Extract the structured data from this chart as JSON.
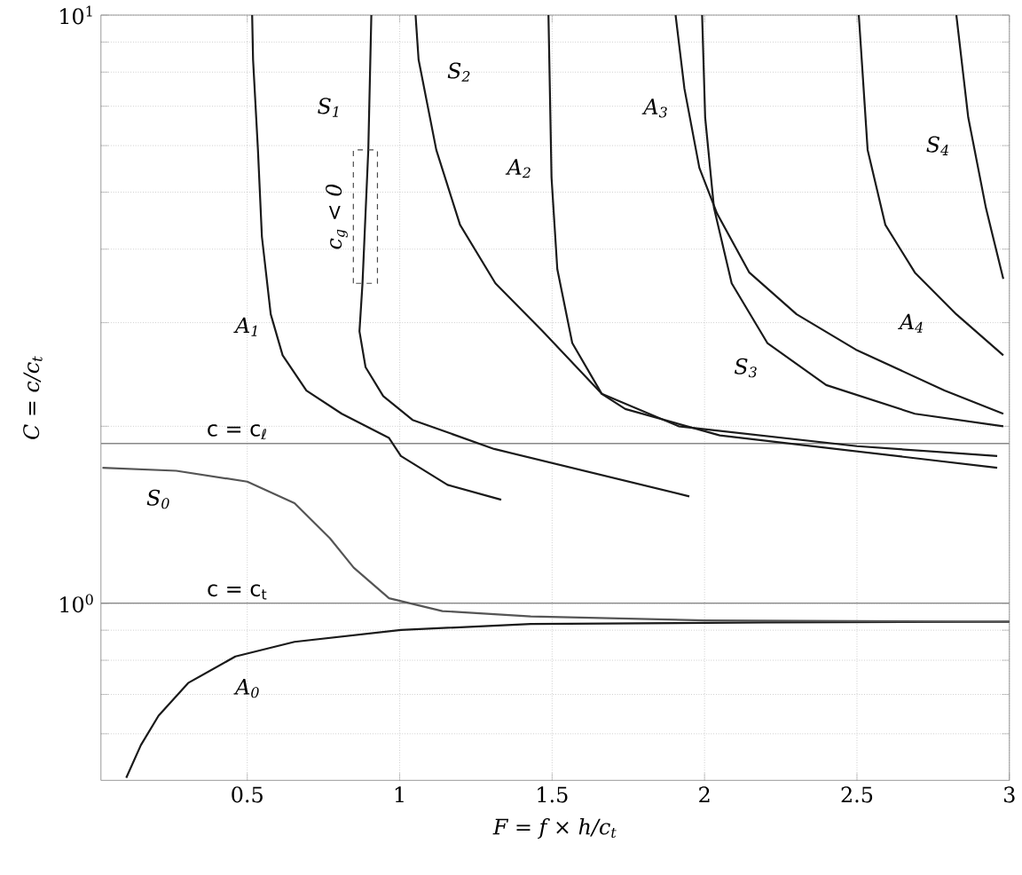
{
  "chart_data": {
    "type": "line",
    "xlabel": "F = f × h/c$_{t}$",
    "ylabel": "C = c/c$_{t}$",
    "xlim": [
      0.02,
      3
    ],
    "ylim": [
      0.5,
      10
    ],
    "log": true,
    "grid": true,
    "xticks": [
      0.5,
      1,
      1.5,
      2,
      2.5,
      3
    ],
    "yticks": [
      {
        "value": 0.6,
        "label": null
      },
      {
        "value": 0.7,
        "label": null
      },
      {
        "value": 0.8,
        "label": null
      },
      {
        "value": 0.9,
        "label": null
      },
      {
        "value": 1,
        "label": "10$^{0}$"
      },
      {
        "value": 2,
        "label": null
      },
      {
        "value": 3,
        "label": null
      },
      {
        "value": 4,
        "label": null
      },
      {
        "value": 5,
        "label": null
      },
      {
        "value": 6,
        "label": null
      },
      {
        "value": 7,
        "label": null
      },
      {
        "value": 8,
        "label": null
      },
      {
        "value": 9,
        "label": null
      },
      {
        "value": 10,
        "label": "10$^{1}$"
      }
    ],
    "series": [
      {
        "name": "A$_{0}$",
        "color": "#1a1a1a",
        "x": [
          0.103,
          0.151,
          0.209,
          0.306,
          0.461,
          0.655,
          1.004,
          1.43,
          2.2,
          3.0
        ],
        "values": [
          0.505,
          0.574,
          0.644,
          0.732,
          0.812,
          0.86,
          0.901,
          0.922,
          0.928,
          0.93
        ]
      },
      {
        "name": "S$_{0}$",
        "color": "#555555",
        "x": [
          0.025,
          0.267,
          0.5,
          0.655,
          0.771,
          0.849,
          0.965,
          1.14,
          1.43,
          2.0,
          3.0
        ],
        "values": [
          1.7,
          1.68,
          1.61,
          1.48,
          1.29,
          1.15,
          1.02,
          0.97,
          0.95,
          0.935,
          0.93
        ]
      },
      {
        "name": "A$_{1}$",
        "color": "#1a1a1a",
        "x": [
          0.516,
          0.519,
          0.535,
          0.548,
          0.577,
          0.616,
          0.694,
          0.81,
          0.965,
          1.004,
          1.157,
          1.333
        ],
        "values": [
          10,
          8.4,
          5.9,
          4.2,
          3.1,
          2.64,
          2.3,
          2.1,
          1.91,
          1.78,
          1.59,
          1.5
        ]
      },
      {
        "name": "S$_{1}$",
        "color": "#1a1a1a",
        "x": [
          0.907,
          0.897,
          0.878,
          0.868,
          0.888,
          0.946,
          1.042,
          1.31,
          1.95
        ],
        "values": [
          10,
          5.9,
          3.5,
          2.9,
          2.52,
          2.25,
          2.05,
          1.83,
          1.52
        ]
      },
      {
        "name": "S$_{2}$",
        "color": "#1a1a1a",
        "x": [
          1.052,
          1.062,
          1.12,
          1.198,
          1.314,
          1.469,
          1.663,
          1.74,
          2.05,
          2.96
        ],
        "values": [
          10,
          8.4,
          5.9,
          4.4,
          3.5,
          2.9,
          2.27,
          2.14,
          1.93,
          1.7
        ]
      },
      {
        "name": "A$_{2}$",
        "color": "#1a1a1a",
        "x": [
          1.488,
          1.498,
          1.517,
          1.566,
          1.663,
          1.915,
          2.5,
          2.96
        ],
        "values": [
          10,
          5.3,
          3.7,
          2.77,
          2.27,
          2.0,
          1.85,
          1.78
        ]
      },
      {
        "name": "A$_{3}$",
        "color": "#1a1a1a",
        "x": [
          1.905,
          1.934,
          1.983,
          2.041,
          2.147,
          2.302,
          2.496,
          2.787,
          2.98
        ],
        "values": [
          10,
          7.5,
          5.5,
          4.6,
          3.65,
          3.1,
          2.7,
          2.3,
          2.1
        ]
      },
      {
        "name": "S$_{3}$",
        "color": "#1a1a1a",
        "x": [
          1.992,
          2.002,
          2.031,
          2.089,
          2.206,
          2.399,
          2.69,
          2.98
        ],
        "values": [
          10,
          6.7,
          4.7,
          3.5,
          2.77,
          2.35,
          2.1,
          2.0
        ]
      },
      {
        "name": "A$_{4}$",
        "color": "#1a1a1a",
        "x": [
          2.506,
          2.535,
          2.593,
          2.69,
          2.826,
          2.98
        ],
        "values": [
          10,
          5.9,
          4.4,
          3.65,
          3.1,
          2.64
        ]
      },
      {
        "name": "S$_{4}$",
        "color": "#1a1a1a",
        "x": [
          2.826,
          2.865,
          2.923,
          2.98
        ],
        "values": [
          10,
          6.7,
          4.7,
          3.56
        ]
      }
    ],
    "ref_lines": [
      {
        "axis": "y",
        "value": 1.87,
        "label": "c = c$_{ℓ}$",
        "color": "#888888"
      },
      {
        "axis": "y",
        "value": 1,
        "label": "c = c$_{t}$",
        "color": "#888888"
      }
    ],
    "annotations": [
      "c$_{g}$ < 0"
    ]
  }
}
